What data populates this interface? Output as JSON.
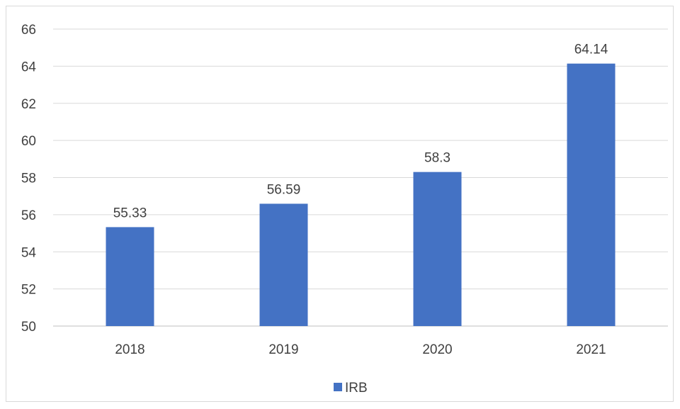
{
  "chart_data": {
    "type": "bar",
    "categories": [
      "2018",
      "2019",
      "2020",
      "2021"
    ],
    "series": [
      {
        "name": "IRB",
        "values": [
          55.33,
          56.59,
          58.3,
          64.14
        ],
        "color": "#4472c4"
      }
    ],
    "data_labels": [
      "55.33",
      "56.59",
      "58.3",
      "64.14"
    ],
    "y_ticks": [
      "50",
      "52",
      "54",
      "56",
      "58",
      "60",
      "62",
      "64",
      "66"
    ],
    "ylim": [
      50,
      66
    ],
    "grid": true,
    "legend": {
      "position": "bottom",
      "entries": [
        "IRB"
      ]
    }
  }
}
